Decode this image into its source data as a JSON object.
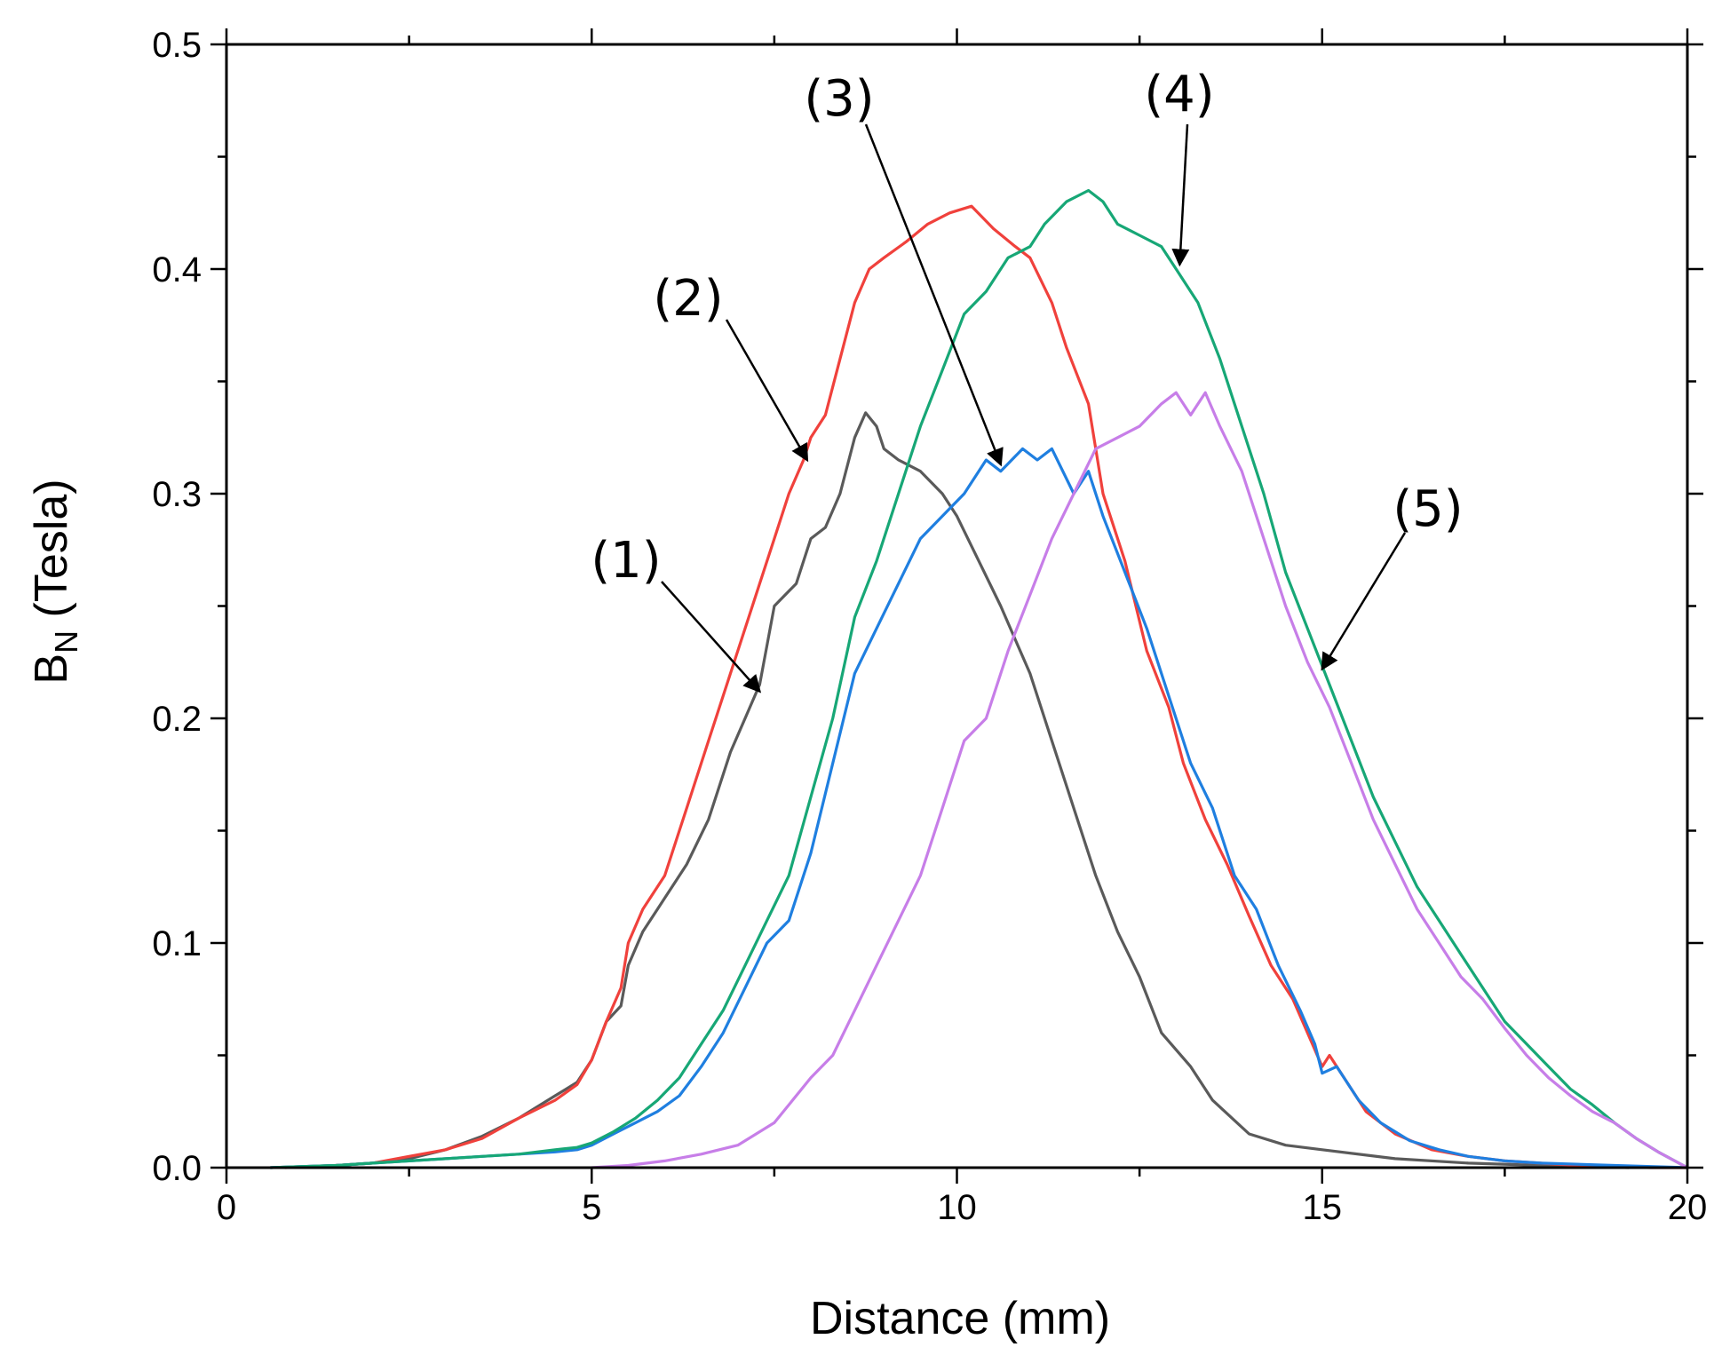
{
  "chart_data": {
    "type": "line",
    "title": "",
    "xlabel": "Distance (mm)",
    "ylabel_main": "B",
    "ylabel_sub": "N",
    "ylabel_rest": " (Tesla)",
    "xlim": [
      0,
      20
    ],
    "ylim": [
      0,
      0.5
    ],
    "xticks": [
      0,
      5,
      10,
      15,
      20
    ],
    "xtick_labels": [
      "0",
      "5",
      "10",
      "15",
      "20"
    ],
    "yticks": [
      0.0,
      0.1,
      0.2,
      0.3,
      0.4,
      0.5
    ],
    "ytick_labels": [
      "0.0",
      "0.1",
      "0.2",
      "0.3",
      "0.4",
      "0.5"
    ],
    "grid": false,
    "legend": "none",
    "series": [
      {
        "name": "(1)",
        "color": "#5a5a5a",
        "x": [
          0.6,
          1.5,
          2.0,
          2.5,
          3.0,
          3.5,
          4.0,
          4.5,
          4.8,
          5.0,
          5.2,
          5.4,
          5.5,
          5.7,
          6.0,
          6.3,
          6.6,
          6.9,
          7.1,
          7.3,
          7.5,
          7.8,
          8.0,
          8.2,
          8.4,
          8.6,
          8.75,
          8.9,
          9.0,
          9.2,
          9.5,
          9.8,
          10.0,
          10.3,
          10.6,
          10.8,
          11.0,
          11.3,
          11.6,
          11.9,
          12.2,
          12.5,
          12.8,
          13.2,
          13.5,
          14.0,
          14.5,
          15.0,
          16.0,
          17.0,
          18.0,
          19.2
        ],
        "y": [
          0.0,
          0.001,
          0.002,
          0.004,
          0.008,
          0.014,
          0.022,
          0.032,
          0.038,
          0.048,
          0.065,
          0.072,
          0.09,
          0.105,
          0.12,
          0.135,
          0.155,
          0.185,
          0.2,
          0.215,
          0.25,
          0.26,
          0.28,
          0.285,
          0.3,
          0.325,
          0.336,
          0.33,
          0.32,
          0.315,
          0.31,
          0.3,
          0.29,
          0.27,
          0.25,
          0.235,
          0.22,
          0.19,
          0.16,
          0.13,
          0.105,
          0.085,
          0.06,
          0.045,
          0.03,
          0.015,
          0.01,
          0.008,
          0.004,
          0.002,
          0.001,
          0.0
        ]
      },
      {
        "name": "(2)",
        "color": "#f0413c",
        "x": [
          0.8,
          1.5,
          2.0,
          2.5,
          3.0,
          3.5,
          4.0,
          4.5,
          4.8,
          5.0,
          5.2,
          5.4,
          5.5,
          5.7,
          6.0,
          6.3,
          6.6,
          6.9,
          7.1,
          7.3,
          7.5,
          7.7,
          7.9,
          8.0,
          8.2,
          8.4,
          8.6,
          8.8,
          9.0,
          9.3,
          9.6,
          9.9,
          10.2,
          10.5,
          10.8,
          11.0,
          11.3,
          11.5,
          11.8,
          12.0,
          12.3,
          12.6,
          12.9,
          13.1,
          13.4,
          13.7,
          14.0,
          14.3,
          14.6,
          14.8,
          15.0,
          15.1,
          15.3,
          15.6,
          16.0,
          16.5,
          17.0,
          17.5,
          18.5,
          19.5,
          20.0
        ],
        "y": [
          0.0,
          0.001,
          0.002,
          0.005,
          0.008,
          0.013,
          0.022,
          0.03,
          0.037,
          0.048,
          0.065,
          0.08,
          0.1,
          0.115,
          0.13,
          0.16,
          0.19,
          0.22,
          0.24,
          0.26,
          0.28,
          0.3,
          0.315,
          0.325,
          0.335,
          0.36,
          0.385,
          0.4,
          0.405,
          0.412,
          0.42,
          0.425,
          0.428,
          0.418,
          0.41,
          0.405,
          0.385,
          0.365,
          0.34,
          0.3,
          0.27,
          0.23,
          0.205,
          0.18,
          0.155,
          0.135,
          0.112,
          0.09,
          0.075,
          0.06,
          0.045,
          0.05,
          0.04,
          0.025,
          0.015,
          0.008,
          0.005,
          0.003,
          0.001,
          0.0,
          0.0
        ]
      },
      {
        "name": "(3)",
        "color": "#1f7fe0",
        "x": [
          0.6,
          1.5,
          2.0,
          3.0,
          3.5,
          4.0,
          4.5,
          4.8,
          5.0,
          5.3,
          5.6,
          5.9,
          6.2,
          6.5,
          6.8,
          7.1,
          7.4,
          7.7,
          8.0,
          8.3,
          8.6,
          8.9,
          9.2,
          9.5,
          9.8,
          10.1,
          10.4,
          10.6,
          10.9,
          11.1,
          11.3,
          11.6,
          11.8,
          12.0,
          12.3,
          12.6,
          12.9,
          13.2,
          13.5,
          13.8,
          14.1,
          14.4,
          14.7,
          14.9,
          15.0,
          15.2,
          15.5,
          15.8,
          16.2,
          16.6,
          17.0,
          17.5,
          18.0,
          19.0,
          20.0
        ],
        "y": [
          0.0,
          0.001,
          0.002,
          0.004,
          0.005,
          0.006,
          0.007,
          0.008,
          0.01,
          0.015,
          0.02,
          0.025,
          0.032,
          0.045,
          0.06,
          0.08,
          0.1,
          0.11,
          0.14,
          0.18,
          0.22,
          0.24,
          0.26,
          0.28,
          0.29,
          0.3,
          0.315,
          0.31,
          0.32,
          0.315,
          0.32,
          0.3,
          0.31,
          0.29,
          0.265,
          0.24,
          0.21,
          0.18,
          0.16,
          0.13,
          0.115,
          0.09,
          0.07,
          0.055,
          0.042,
          0.045,
          0.03,
          0.02,
          0.012,
          0.008,
          0.005,
          0.003,
          0.002,
          0.001,
          0.0
        ]
      },
      {
        "name": "(4)",
        "color": "#17a776",
        "x": [
          0.6,
          1.5,
          2.0,
          3.0,
          3.5,
          4.0,
          4.5,
          4.8,
          5.0,
          5.3,
          5.6,
          5.9,
          6.2,
          6.5,
          6.8,
          7.1,
          7.4,
          7.7,
          8.0,
          8.3,
          8.6,
          8.9,
          9.2,
          9.5,
          9.8,
          10.1,
          10.4,
          10.7,
          11.0,
          11.2,
          11.5,
          11.8,
          12.0,
          12.2,
          12.5,
          12.8,
          13.0,
          13.3,
          13.6,
          13.9,
          14.2,
          14.5,
          14.8,
          15.1,
          15.4,
          15.7,
          16.0,
          16.3,
          16.6,
          16.9,
          17.2,
          17.5,
          17.8,
          18.1,
          18.4,
          18.7,
          19.0,
          19.3,
          19.6,
          20.0
        ],
        "y": [
          0.0,
          0.001,
          0.002,
          0.004,
          0.005,
          0.006,
          0.008,
          0.009,
          0.011,
          0.016,
          0.022,
          0.03,
          0.04,
          0.055,
          0.07,
          0.09,
          0.11,
          0.13,
          0.165,
          0.2,
          0.245,
          0.27,
          0.3,
          0.33,
          0.355,
          0.38,
          0.39,
          0.405,
          0.41,
          0.42,
          0.43,
          0.435,
          0.43,
          0.42,
          0.415,
          0.41,
          0.4,
          0.385,
          0.36,
          0.33,
          0.3,
          0.265,
          0.24,
          0.215,
          0.19,
          0.165,
          0.145,
          0.125,
          0.11,
          0.095,
          0.08,
          0.065,
          0.055,
          0.045,
          0.035,
          0.028,
          0.02,
          0.013,
          0.007,
          0.0
        ]
      },
      {
        "name": "(5)",
        "color": "#c77ee8",
        "x": [
          5.0,
          5.5,
          6.0,
          6.5,
          7.0,
          7.5,
          8.0,
          8.3,
          8.6,
          8.9,
          9.2,
          9.5,
          9.8,
          10.1,
          10.4,
          10.7,
          11.0,
          11.3,
          11.6,
          11.9,
          12.2,
          12.5,
          12.8,
          13.0,
          13.2,
          13.4,
          13.6,
          13.9,
          14.2,
          14.5,
          14.8,
          15.1,
          15.4,
          15.7,
          16.0,
          16.3,
          16.6,
          16.9,
          17.2,
          17.5,
          17.8,
          18.1,
          18.4,
          18.7,
          19.0,
          19.3,
          19.6,
          20.0
        ],
        "y": [
          0.0,
          0.001,
          0.003,
          0.006,
          0.01,
          0.02,
          0.04,
          0.05,
          0.07,
          0.09,
          0.11,
          0.13,
          0.16,
          0.19,
          0.2,
          0.23,
          0.255,
          0.28,
          0.3,
          0.32,
          0.325,
          0.33,
          0.34,
          0.345,
          0.335,
          0.345,
          0.33,
          0.31,
          0.28,
          0.25,
          0.225,
          0.205,
          0.18,
          0.155,
          0.135,
          0.115,
          0.1,
          0.085,
          0.075,
          0.062,
          0.05,
          0.04,
          0.032,
          0.025,
          0.02,
          0.013,
          0.007,
          0.0
        ]
      }
    ],
    "annotations": [
      {
        "label": "(1)",
        "target_x": 7.3,
        "target_y": 0.212
      },
      {
        "label": "(2)",
        "target_x": 7.95,
        "target_y": 0.315
      },
      {
        "label": "(3)",
        "target_x": 10.6,
        "target_y": 0.313
      },
      {
        "label": "(4)",
        "target_x": 13.05,
        "target_y": 0.402
      },
      {
        "label": "(5)",
        "target_x": 15.0,
        "target_y": 0.222
      }
    ]
  }
}
